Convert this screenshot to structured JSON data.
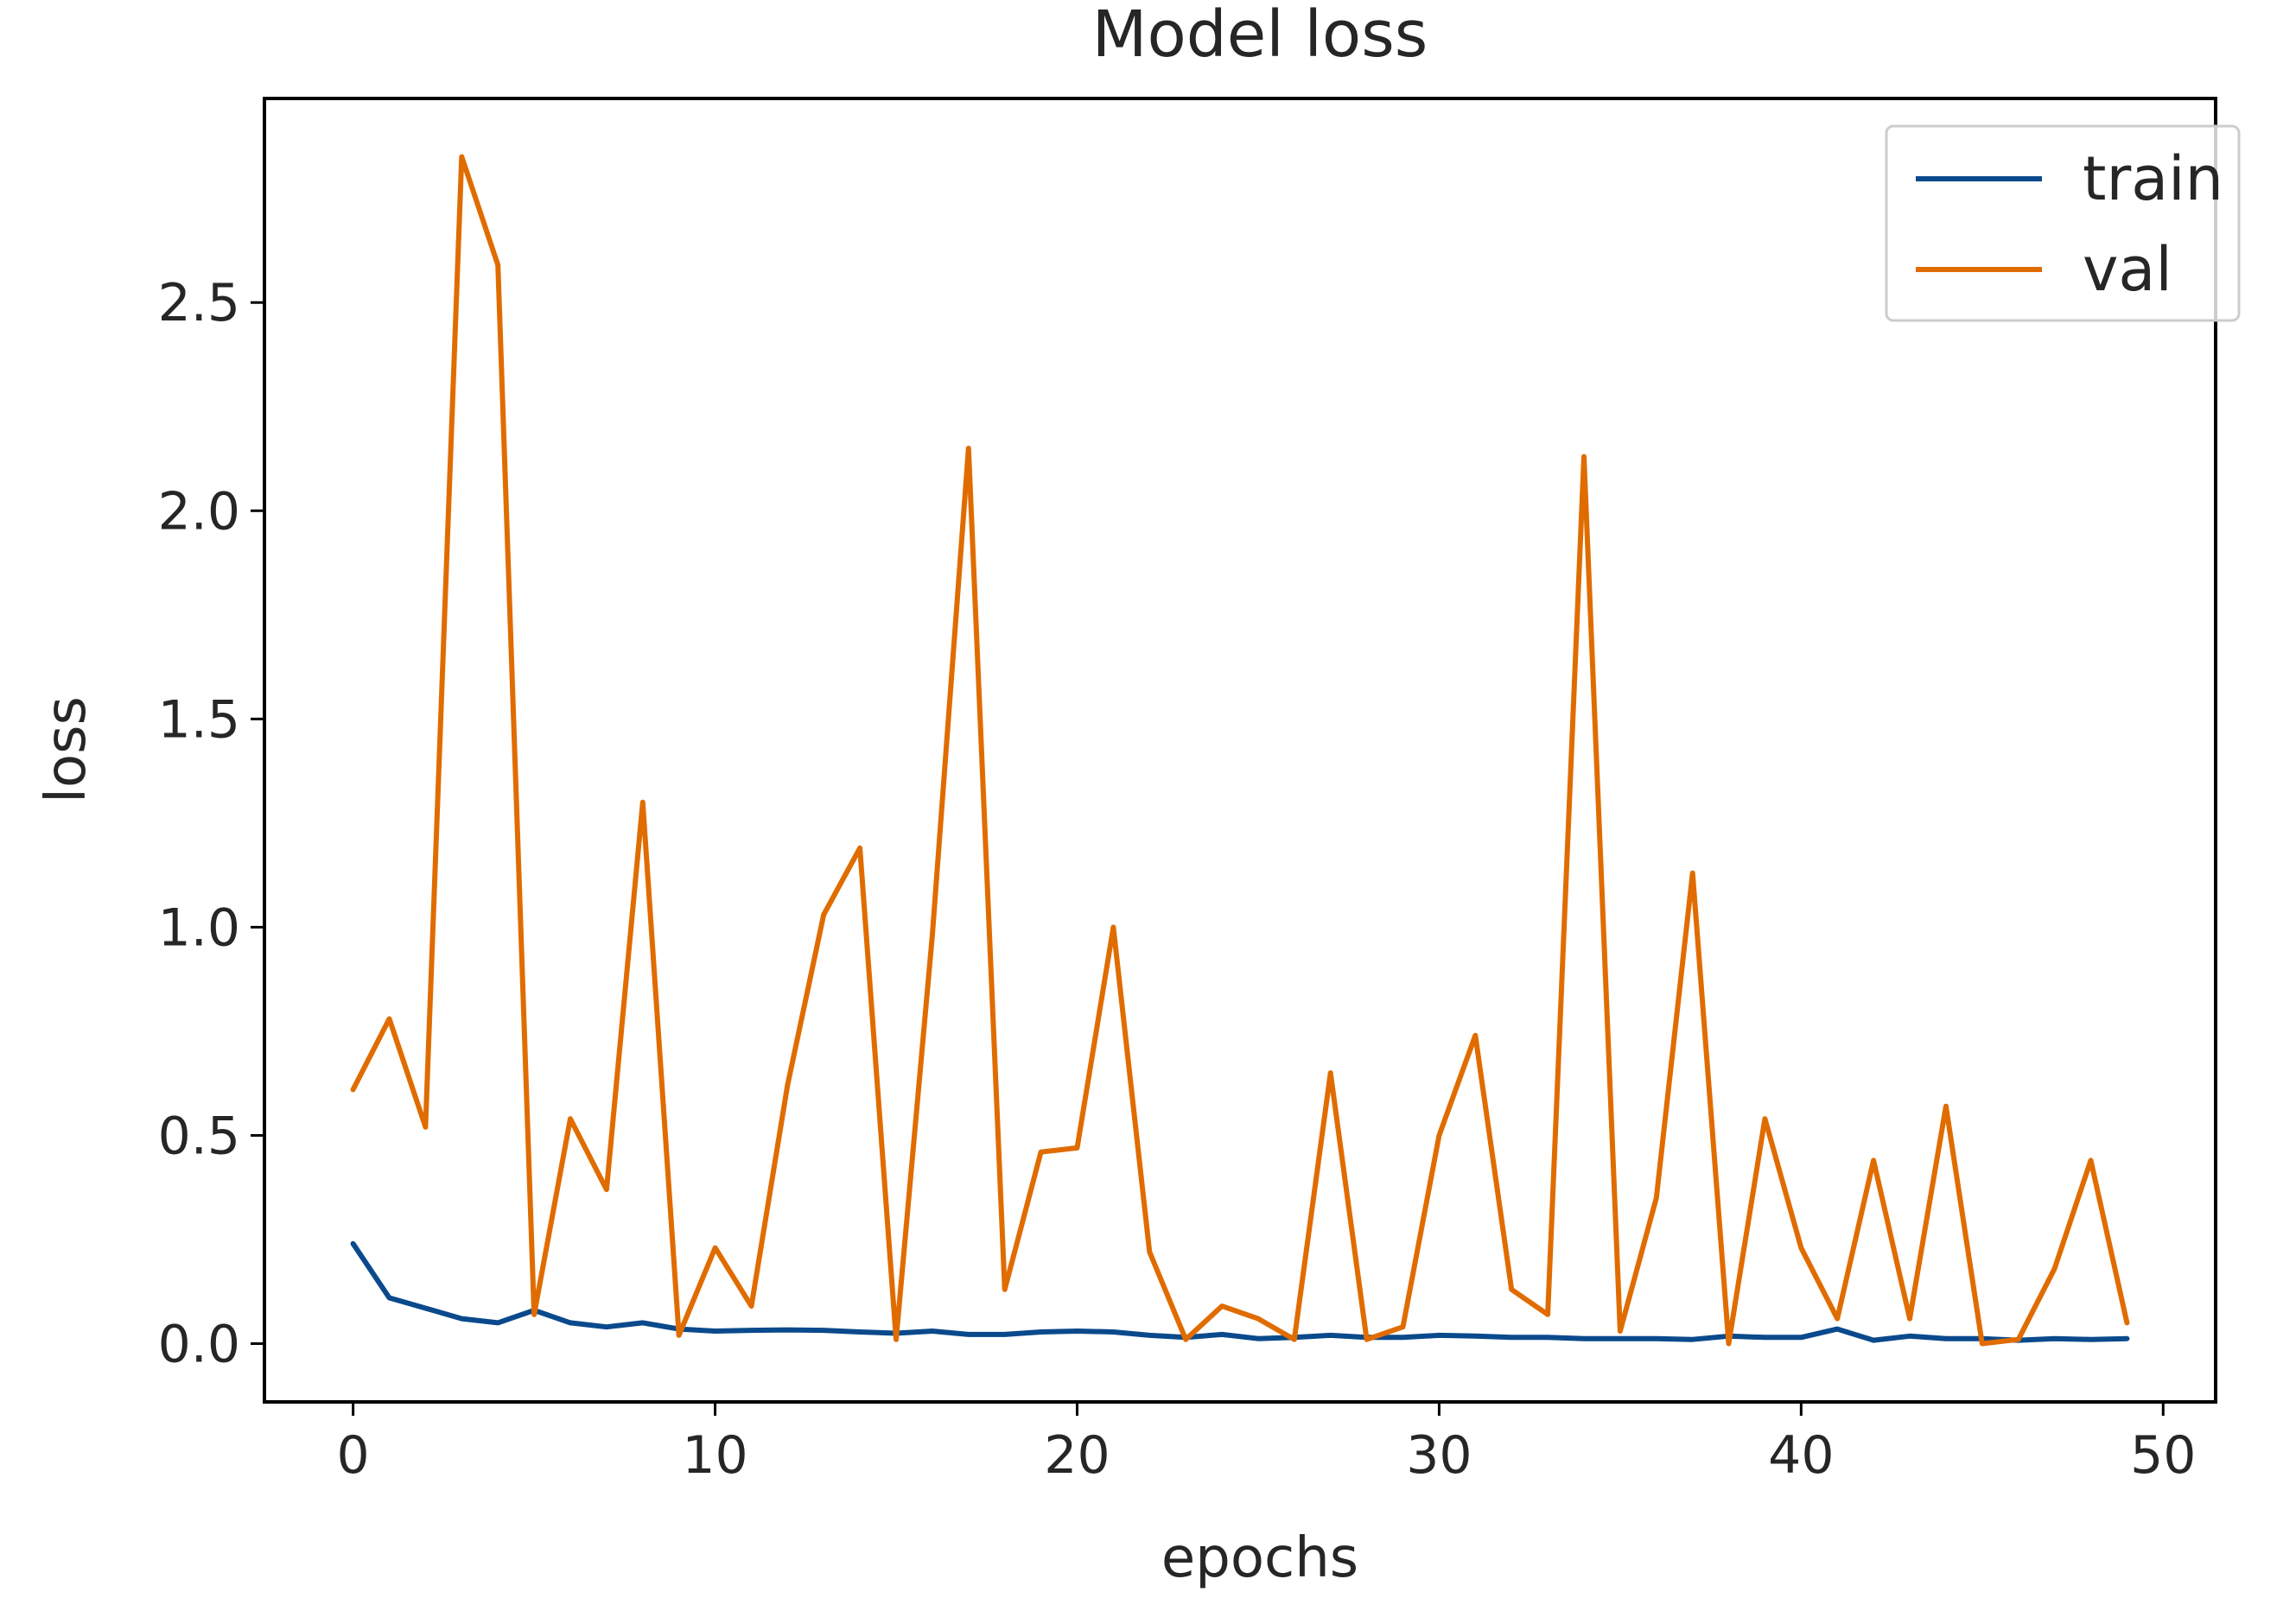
{
  "chart_data": {
    "type": "line",
    "title": "Model loss",
    "xlabel": "epochs",
    "ylabel": "loss",
    "xlim": [
      -2.45,
      51.45
    ],
    "ylim": [
      -0.14,
      2.99
    ],
    "xticks": [
      0,
      10,
      20,
      30,
      40,
      50
    ],
    "xtick_labels": [
      "0",
      "10",
      "20",
      "30",
      "40",
      "50"
    ],
    "yticks": [
      0.0,
      0.5,
      1.0,
      1.5,
      2.0,
      2.5
    ],
    "ytick_labels": [
      "0.0",
      "0.5",
      "1.0",
      "1.5",
      "2.0",
      "2.5"
    ],
    "grid": false,
    "legend_position": "upper right",
    "x": [
      0,
      1,
      2,
      3,
      4,
      5,
      6,
      7,
      8,
      9,
      10,
      11,
      12,
      13,
      14,
      15,
      16,
      17,
      18,
      19,
      20,
      21,
      22,
      23,
      24,
      25,
      26,
      27,
      28,
      29,
      30,
      31,
      32,
      33,
      34,
      35,
      36,
      37,
      38,
      39,
      40,
      41,
      42,
      43,
      44,
      45,
      46,
      47,
      48,
      49
    ],
    "series": [
      {
        "name": "train",
        "color": "#0a4a8c",
        "values": [
          0.24,
          0.11,
          0.085,
          0.06,
          0.05,
          0.08,
          0.05,
          0.04,
          0.05,
          0.035,
          0.03,
          0.032,
          0.033,
          0.032,
          0.028,
          0.025,
          0.03,
          0.022,
          0.022,
          0.028,
          0.03,
          0.028,
          0.02,
          0.015,
          0.022,
          0.012,
          0.015,
          0.02,
          0.015,
          0.015,
          0.02,
          0.018,
          0.015,
          0.015,
          0.012,
          0.012,
          0.012,
          0.01,
          0.018,
          0.015,
          0.015,
          0.035,
          0.008,
          0.018,
          0.012,
          0.012,
          0.008,
          0.012,
          0.01,
          0.012
        ]
      },
      {
        "name": "val",
        "color": "#e06c00",
        "values": [
          0.61,
          0.78,
          0.52,
          2.85,
          2.59,
          0.07,
          0.54,
          0.37,
          1.3,
          0.02,
          0.23,
          0.09,
          0.62,
          1.03,
          1.19,
          0.01,
          0.98,
          2.15,
          0.13,
          0.46,
          0.47,
          1.0,
          0.22,
          0.01,
          0.09,
          0.06,
          0.01,
          0.65,
          0.01,
          0.04,
          0.5,
          0.74,
          0.13,
          0.07,
          2.13,
          0.03,
          0.35,
          1.13,
          0.0,
          0.54,
          0.23,
          0.06,
          0.44,
          0.06,
          0.57,
          0.0,
          0.01,
          0.18,
          0.44,
          0.05
        ]
      }
    ]
  }
}
